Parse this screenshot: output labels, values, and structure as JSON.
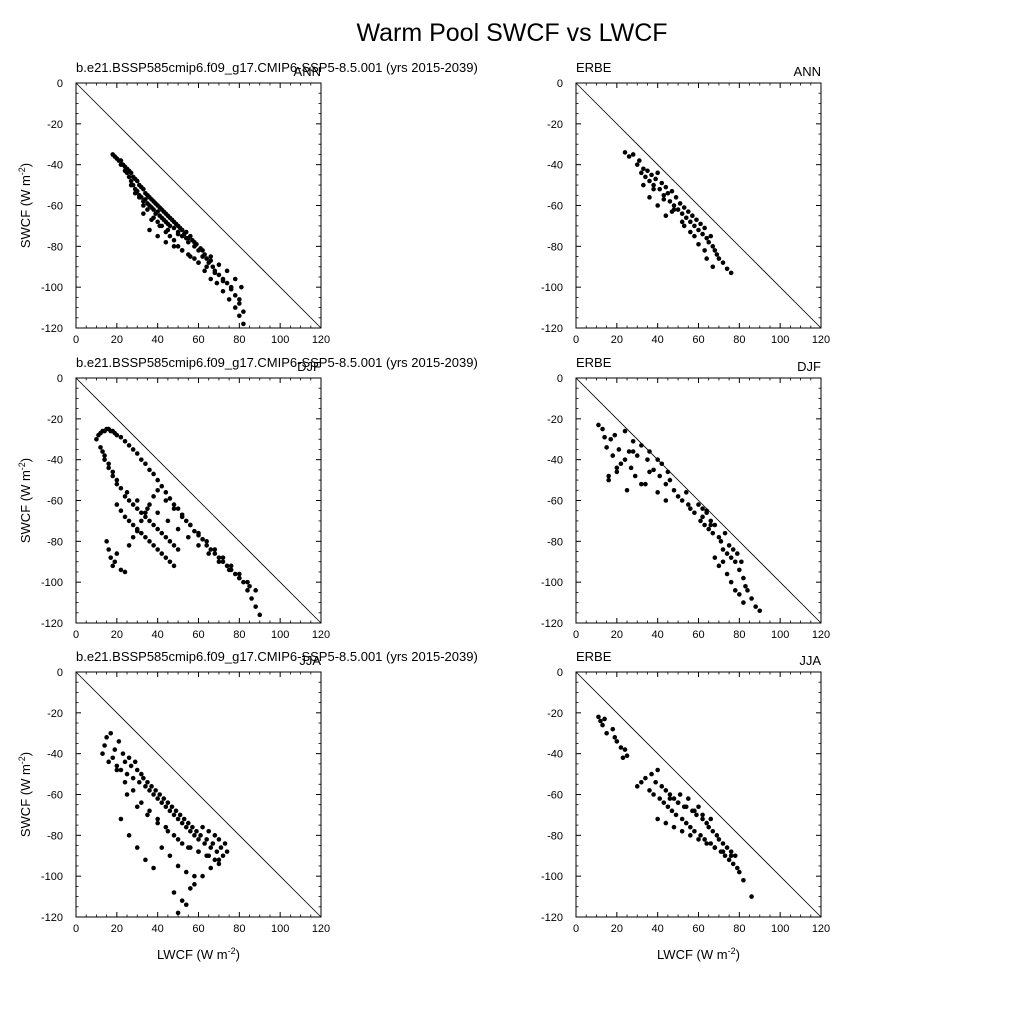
{
  "figure": {
    "title": "Warm Pool SWCF vs LWCF"
  },
  "axes_common": {
    "xlabel": "LWCF (W m",
    "ylabel": "SWCF (W m",
    "unit_exponent": "-2",
    "unit_close": ")",
    "xlim": [
      0,
      120
    ],
    "ylim": [
      -120,
      0
    ],
    "xticks": [
      0,
      20,
      40,
      60,
      80,
      100,
      120
    ],
    "yticks": [
      0,
      -20,
      -40,
      -60,
      -80,
      -100,
      -120
    ],
    "reference_line": "1:1 (SWCF = -LWCF)",
    "grid": false
  },
  "chart_data": [
    {
      "type": "scatter",
      "row": 0,
      "col": 0,
      "left_label": "b.e21.BSSP585cmip6.f09_g17.CMIP6-SSP5-8.5.001 (yrs 2015-2039)",
      "right_label": "ANN",
      "x": [
        18,
        19,
        20,
        21,
        22,
        22,
        23,
        24,
        24,
        25,
        25,
        26,
        26,
        27,
        27,
        28,
        28,
        29,
        29,
        30,
        30,
        31,
        31,
        32,
        32,
        33,
        33,
        34,
        34,
        35,
        35,
        36,
        36,
        37,
        37,
        38,
        38,
        39,
        39,
        40,
        40,
        41,
        41,
        42,
        42,
        43,
        43,
        44,
        44,
        45,
        45,
        46,
        46,
        47,
        48,
        48,
        49,
        50,
        50,
        51,
        52,
        52,
        53,
        54,
        55,
        55,
        56,
        57,
        58,
        59,
        60,
        61,
        62,
        63,
        64,
        65,
        66,
        67,
        68,
        70,
        72,
        74,
        76,
        78,
        80,
        82,
        27,
        29,
        31,
        33,
        35,
        38,
        40,
        42,
        44,
        46,
        48,
        50,
        52,
        55,
        58,
        60,
        63,
        66,
        69,
        72,
        75,
        78,
        80,
        82,
        36,
        40,
        44,
        48,
        52,
        56,
        60,
        64,
        68,
        72,
        76,
        80,
        33,
        37,
        41,
        45,
        50,
        54,
        58,
        62,
        66,
        70,
        74,
        78,
        81
      ],
      "y": [
        -35,
        -36,
        -37,
        -38,
        -38,
        -40,
        -40,
        -41,
        -43,
        -42,
        -44,
        -43,
        -46,
        -44,
        -48,
        -46,
        -50,
        -47,
        -52,
        -48,
        -53,
        -50,
        -55,
        -51,
        -56,
        -52,
        -58,
        -54,
        -57,
        -55,
        -59,
        -56,
        -60,
        -57,
        -61,
        -58,
        -62,
        -59,
        -64,
        -60,
        -63,
        -61,
        -65,
        -62,
        -66,
        -63,
        -67,
        -64,
        -68,
        -65,
        -69,
        -66,
        -70,
        -67,
        -68,
        -71,
        -69,
        -70,
        -73,
        -71,
        -72,
        -75,
        -74,
        -73,
        -76,
        -78,
        -75,
        -77,
        -80,
        -79,
        -82,
        -81,
        -85,
        -84,
        -86,
        -88,
        -87,
        -90,
        -92,
        -94,
        -96,
        -98,
        -100,
        -104,
        -108,
        -112,
        -50,
        -54,
        -56,
        -60,
        -62,
        -66,
        -68,
        -70,
        -73,
        -75,
        -77,
        -80,
        -82,
        -84,
        -86,
        -88,
        -92,
        -96,
        -98,
        -102,
        -106,
        -110,
        -114,
        -118,
        -72,
        -75,
        -78,
        -80,
        -82,
        -85,
        -88,
        -90,
        -93,
        -97,
        -101,
        -106,
        -64,
        -67,
        -70,
        -72,
        -74,
        -76,
        -78,
        -82,
        -85,
        -89,
        -92,
        -96,
        -100
      ]
    },
    {
      "type": "scatter",
      "row": 0,
      "col": 1,
      "left_label": "ERBE",
      "right_label": "ANN",
      "x": [
        24,
        26,
        28,
        30,
        31,
        32,
        33,
        34,
        35,
        36,
        37,
        38,
        39,
        40,
        41,
        42,
        43,
        44,
        45,
        46,
        47,
        48,
        49,
        50,
        51,
        52,
        53,
        54,
        55,
        56,
        57,
        58,
        59,
        60,
        61,
        62,
        63,
        64,
        65,
        66,
        67,
        68,
        69,
        70,
        72,
        74,
        76,
        36,
        40,
        44,
        48,
        52,
        56,
        60,
        64,
        33,
        38,
        43,
        47,
        53,
        58,
        63,
        67
      ],
      "y": [
        -34,
        -36,
        -35,
        -40,
        -38,
        -44,
        -42,
        -46,
        -43,
        -48,
        -45,
        -50,
        -47,
        -44,
        -52,
        -49,
        -55,
        -51,
        -54,
        -58,
        -53,
        -60,
        -56,
        -62,
        -59,
        -64,
        -61,
        -66,
        -63,
        -68,
        -65,
        -70,
        -67,
        -72,
        -69,
        -74,
        -71,
        -76,
        -78,
        -75,
        -80,
        -82,
        -84,
        -86,
        -88,
        -91,
        -93,
        -56,
        -60,
        -65,
        -62,
        -68,
        -73,
        -79,
        -86,
        -50,
        -52,
        -57,
        -63,
        -70,
        -75,
        -82,
        -90
      ]
    },
    {
      "type": "scatter",
      "row": 1,
      "col": 0,
      "left_label": "b.e21.BSSP585cmip6.f09_g17.CMIP6-SSP5-8.5.001 (yrs 2015-2039)",
      "right_label": "DJF",
      "x": [
        10,
        11,
        12,
        13,
        14,
        15,
        16,
        17,
        18,
        19,
        20,
        22,
        24,
        26,
        28,
        30,
        32,
        34,
        36,
        38,
        40,
        42,
        44,
        46,
        48,
        50,
        52,
        54,
        56,
        58,
        60,
        62,
        64,
        66,
        68,
        70,
        72,
        74,
        76,
        78,
        80,
        82,
        84,
        86,
        88,
        90,
        12,
        14,
        16,
        18,
        20,
        22,
        24,
        26,
        28,
        30,
        32,
        34,
        36,
        38,
        40,
        42,
        44,
        46,
        48,
        50,
        20,
        22,
        24,
        26,
        28,
        30,
        32,
        34,
        36,
        38,
        40,
        42,
        44,
        46,
        48,
        15,
        16,
        17,
        18,
        19,
        20,
        22,
        24,
        26,
        28,
        30,
        32,
        34,
        36,
        38,
        40,
        44,
        48,
        52,
        56,
        60,
        64,
        68,
        72,
        76,
        80,
        84,
        88,
        13,
        14,
        16,
        18,
        20,
        25,
        30,
        35,
        40,
        45,
        50,
        55,
        60,
        65,
        70,
        75,
        80,
        85
      ],
      "y": [
        -30,
        -28,
        -27,
        -26,
        -26,
        -25,
        -25,
        -26,
        -26,
        -27,
        -28,
        -29,
        -31,
        -33,
        -35,
        -37,
        -40,
        -42,
        -45,
        -47,
        -50,
        -53,
        -56,
        -59,
        -62,
        -64,
        -67,
        -70,
        -72,
        -75,
        -77,
        -79,
        -82,
        -84,
        -86,
        -88,
        -90,
        -92,
        -94,
        -96,
        -98,
        -100,
        -104,
        -108,
        -112,
        -116,
        -34,
        -38,
        -42,
        -46,
        -50,
        -54,
        -58,
        -60,
        -62,
        -64,
        -66,
        -68,
        -70,
        -72,
        -74,
        -76,
        -78,
        -80,
        -82,
        -84,
        -62,
        -65,
        -68,
        -70,
        -72,
        -74,
        -76,
        -78,
        -80,
        -82,
        -84,
        -86,
        -88,
        -90,
        -92,
        -80,
        -84,
        -88,
        -92,
        -90,
        -86,
        -94,
        -95,
        -82,
        -78,
        -75,
        -70,
        -66,
        -62,
        -58,
        -55,
        -60,
        -64,
        -68,
        -72,
        -76,
        -80,
        -84,
        -88,
        -92,
        -96,
        -100,
        -104,
        -36,
        -40,
        -44,
        -48,
        -52,
        -56,
        -60,
        -64,
        -66,
        -70,
        -74,
        -78,
        -82,
        -86,
        -90,
        -94,
        -98,
        -102
      ]
    },
    {
      "type": "scatter",
      "row": 1,
      "col": 1,
      "left_label": "ERBE",
      "right_label": "DJF",
      "x": [
        11,
        13,
        14,
        15,
        16,
        17,
        18,
        19,
        20,
        21,
        22,
        24,
        25,
        26,
        27,
        28,
        29,
        30,
        32,
        34,
        35,
        36,
        38,
        40,
        41,
        42,
        44,
        45,
        46,
        48,
        50,
        52,
        54,
        55,
        56,
        58,
        60,
        61,
        62,
        63,
        64,
        65,
        66,
        67,
        68,
        70,
        71,
        72,
        73,
        74,
        75,
        76,
        77,
        78,
        79,
        80,
        81,
        82,
        83,
        84,
        86,
        88,
        90,
        62,
        64,
        66,
        68,
        70,
        72,
        74,
        76,
        78,
        80,
        82,
        16,
        20,
        24,
        28,
        32,
        36,
        40,
        44
      ],
      "y": [
        -23,
        -25,
        -29,
        -34,
        -50,
        -30,
        -38,
        -28,
        -46,
        -35,
        -42,
        -26,
        -55,
        -36,
        -44,
        -31,
        -48,
        -38,
        -33,
        -52,
        -40,
        -36,
        -45,
        -40,
        -48,
        -42,
        -52,
        -46,
        -50,
        -55,
        -58,
        -60,
        -56,
        -62,
        -64,
        -66,
        -62,
        -70,
        -68,
        -72,
        -65,
        -74,
        -70,
        -76,
        -72,
        -78,
        -80,
        -84,
        -76,
        -86,
        -82,
        -88,
        -84,
        -90,
        -86,
        -94,
        -90,
        -98,
        -102,
        -104,
        -108,
        -112,
        -114,
        -64,
        -66,
        -72,
        -88,
        -92,
        -90,
        -96,
        -100,
        -104,
        -106,
        -110,
        -48,
        -44,
        -40,
        -36,
        -52,
        -46,
        -56,
        -60
      ]
    },
    {
      "type": "scatter",
      "row": 2,
      "col": 0,
      "left_label": "b.e21.BSSP585cmip6.f09_g17.CMIP6-SSP5-8.5.001 (yrs 2015-2039)",
      "right_label": "JJA",
      "x": [
        13,
        14,
        15,
        16,
        17,
        18,
        19,
        20,
        21,
        22,
        23,
        24,
        25,
        26,
        27,
        28,
        29,
        30,
        31,
        32,
        33,
        34,
        35,
        36,
        37,
        38,
        39,
        40,
        41,
        42,
        43,
        44,
        45,
        46,
        47,
        48,
        49,
        50,
        51,
        52,
        53,
        54,
        55,
        56,
        57,
        58,
        59,
        60,
        61,
        62,
        63,
        64,
        65,
        66,
        67,
        68,
        69,
        70,
        71,
        72,
        73,
        74,
        20,
        24,
        28,
        32,
        36,
        40,
        44,
        48,
        52,
        56,
        60,
        64,
        68,
        25,
        30,
        35,
        40,
        45,
        50,
        55,
        60,
        65,
        70,
        22,
        26,
        30,
        34,
        38,
        42,
        46,
        50,
        54,
        58,
        62,
        66,
        70,
        48,
        50,
        52,
        54,
        56,
        58
      ],
      "y": [
        -40,
        -36,
        -32,
        -44,
        -30,
        -42,
        -38,
        -46,
        -34,
        -48,
        -40,
        -44,
        -50,
        -42,
        -46,
        -52,
        -44,
        -48,
        -54,
        -50,
        -52,
        -56,
        -54,
        -58,
        -56,
        -60,
        -58,
        -62,
        -60,
        -64,
        -62,
        -66,
        -64,
        -68,
        -66,
        -70,
        -68,
        -72,
        -70,
        -74,
        -72,
        -76,
        -74,
        -78,
        -76,
        -80,
        -78,
        -82,
        -80,
        -76,
        -84,
        -82,
        -78,
        -86,
        -84,
        -80,
        -88,
        -82,
        -86,
        -90,
        -84,
        -88,
        -48,
        -54,
        -58,
        -64,
        -68,
        -72,
        -76,
        -80,
        -84,
        -86,
        -88,
        -90,
        -92,
        -60,
        -66,
        -70,
        -74,
        -78,
        -82,
        -86,
        -88,
        -90,
        -92,
        -72,
        -80,
        -86,
        -92,
        -96,
        -86,
        -90,
        -95,
        -98,
        -104,
        -100,
        -96,
        -94,
        -108,
        -118,
        -112,
        -114,
        -106,
        -100
      ]
    },
    {
      "type": "scatter",
      "row": 2,
      "col": 1,
      "left_label": "ERBE",
      "right_label": "JJA",
      "x": [
        11,
        12,
        13,
        14,
        15,
        18,
        19,
        20,
        22,
        23,
        24,
        25,
        30,
        32,
        34,
        36,
        37,
        38,
        39,
        40,
        41,
        42,
        43,
        44,
        45,
        46,
        47,
        48,
        49,
        50,
        51,
        52,
        53,
        54,
        55,
        56,
        57,
        58,
        59,
        60,
        61,
        62,
        63,
        64,
        65,
        66,
        67,
        68,
        69,
        70,
        71,
        72,
        73,
        74,
        75,
        76,
        77,
        78,
        79,
        80,
        82,
        86,
        40,
        44,
        48,
        52,
        56,
        60,
        64,
        68,
        72,
        76,
        46,
        50,
        54,
        58,
        62,
        66
      ],
      "y": [
        -22,
        -24,
        -26,
        -23,
        -30,
        -28,
        -32,
        -34,
        -37,
        -42,
        -38,
        -41,
        -56,
        -54,
        -52,
        -58,
        -50,
        -60,
        -54,
        -48,
        -62,
        -56,
        -64,
        -58,
        -66,
        -60,
        -68,
        -62,
        -70,
        -64,
        -60,
        -72,
        -66,
        -74,
        -62,
        -76,
        -68,
        -78,
        -70,
        -66,
        -80,
        -72,
        -82,
        -74,
        -76,
        -84,
        -78,
        -86,
        -80,
        -82,
        -88,
        -84,
        -90,
        -86,
        -92,
        -88,
        -94,
        -90,
        -96,
        -98,
        -102,
        -110,
        -72,
        -74,
        -76,
        -78,
        -80,
        -82,
        -84,
        -86,
        -88,
        -90,
        -62,
        -64,
        -66,
        -68,
        -70,
        -72
      ]
    }
  ]
}
